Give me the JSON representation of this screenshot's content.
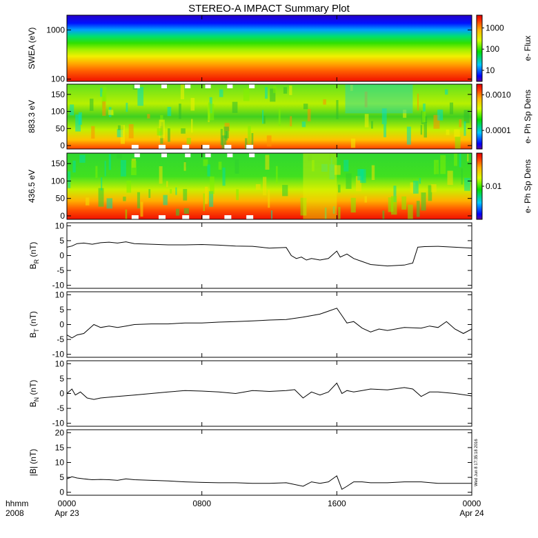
{
  "chart_data": {
    "type": "heatmap",
    "title": "STEREO-A IMPACT Summary Plot",
    "timestamp": "Wed Jun  8 17:35:18 2016",
    "x_axis": {
      "row_label_1": "hhmm",
      "row_label_2": "2008",
      "ticks": [
        {
          "hour": 0,
          "time": "0000",
          "date": "Apr 23"
        },
        {
          "hour": 8,
          "time": "0800",
          "date": ""
        },
        {
          "hour": 16,
          "time": "1600",
          "date": ""
        },
        {
          "hour": 24,
          "time": "0000",
          "date": "Apr 24"
        }
      ],
      "range_hours": [
        0,
        24
      ]
    },
    "spectrograms": [
      {
        "name": "swea",
        "ylabel": "SWEA (eV)",
        "yscale": "log",
        "ylim": [
          90,
          2000
        ],
        "yticks": [
          {
            "v": 1000,
            "label": "1000"
          },
          {
            "v": 100,
            "label": "100"
          }
        ],
        "colorbar_label": "e- Flux",
        "colorbar_scale": "log",
        "colorbar_ticks": [
          {
            "v": 1000,
            "label": "1000"
          },
          {
            "v": 100,
            "label": "100"
          },
          {
            "v": 10,
            "label": "10"
          }
        ],
        "colorbar_range": [
          3,
          4000
        ]
      },
      {
        "name": "pad-883",
        "ylabel": "883.3 eV",
        "yscale": "linear",
        "ylim": [
          -10,
          180
        ],
        "yticks": [
          {
            "v": 0,
            "label": "0"
          },
          {
            "v": 50,
            "label": "50"
          },
          {
            "v": 100,
            "label": "100"
          },
          {
            "v": 150,
            "label": "150"
          }
        ],
        "colorbar_label": "e- Ph Sp Dens",
        "colorbar_scale": "log",
        "colorbar_ticks": [
          {
            "v": 0.001,
            "label": "0.0010"
          },
          {
            "v": 0.0001,
            "label": "0.0001"
          }
        ],
        "colorbar_range": [
          3e-05,
          0.002
        ]
      },
      {
        "name": "pad-436",
        "ylabel": "436.5 eV",
        "yscale": "linear",
        "ylim": [
          -10,
          180
        ],
        "yticks": [
          {
            "v": 0,
            "label": "0"
          },
          {
            "v": 50,
            "label": "50"
          },
          {
            "v": 100,
            "label": "100"
          },
          {
            "v": 150,
            "label": "150"
          }
        ],
        "colorbar_label": "e- Ph Sp Dens",
        "colorbar_scale": "log",
        "colorbar_ticks": [
          {
            "v": 0.01,
            "label": "0.01"
          }
        ],
        "colorbar_range": [
          0.002,
          0.05
        ]
      }
    ],
    "line_panels": [
      {
        "name": "br",
        "label_main": "B",
        "label_sub": "R",
        "label_unit": "(nT)",
        "ylim": [
          -11,
          11
        ],
        "yticks": [
          {
            "v": 10,
            "label": "10"
          },
          {
            "v": 5,
            "label": "5"
          },
          {
            "v": 0,
            "label": "0"
          },
          {
            "v": -5,
            "label": "-5"
          },
          {
            "v": -10,
            "label": "-10"
          }
        ],
        "series": [
          {
            "x": [
              0,
              0.3,
              0.6,
              1,
              1.5,
              2,
              2.5,
              3,
              3.5,
              4,
              5,
              6,
              7,
              8,
              9,
              10,
              11,
              12,
              12.5,
              13,
              13.3,
              13.6,
              13.9,
              14.2,
              14.5,
              15,
              15.5,
              16,
              16.2,
              16.6,
              17,
              17.5,
              18,
              19,
              20,
              20.5,
              20.8,
              21.2,
              22,
              23,
              24
            ],
            "y": [
              2.8,
              3.2,
              4,
              4.2,
              3.8,
              4.3,
              4.5,
              4.2,
              4.6,
              4,
              3.8,
              3.6,
              3.6,
              3.7,
              3.5,
              3.2,
              3.1,
              2.5,
              2.6,
              2.7,
              0,
              -1,
              -0.5,
              -1.5,
              -1,
              -1.5,
              -1,
              1.5,
              -0.5,
              0.5,
              -1,
              -2,
              -3,
              -3.5,
              -3.2,
              -2.5,
              2.8,
              3,
              3.1,
              2.8,
              2.5
            ]
          }
        ]
      },
      {
        "name": "bt",
        "label_main": "B",
        "label_sub": "T",
        "label_unit": "(nT)",
        "ylim": [
          -11,
          11
        ],
        "yticks": [
          {
            "v": 10,
            "label": "10"
          },
          {
            "v": 5,
            "label": "5"
          },
          {
            "v": 0,
            "label": "0"
          },
          {
            "v": -5,
            "label": "-5"
          },
          {
            "v": -10,
            "label": "-10"
          }
        ],
        "series": [
          {
            "x": [
              0,
              0.3,
              0.6,
              1,
              1.3,
              1.6,
              2,
              2.5,
              3,
              3.5,
              4,
              5,
              6,
              7,
              8,
              9,
              10,
              11,
              12,
              13,
              14,
              15,
              15.5,
              16,
              16.3,
              16.6,
              17,
              17.5,
              18,
              18.5,
              19,
              20,
              21,
              21.5,
              22,
              22.5,
              23,
              23.5,
              24
            ],
            "y": [
              -3.5,
              -4.5,
              -3.5,
              -3,
              -1.5,
              0,
              -1,
              -0.5,
              -1,
              -0.5,
              0,
              0.2,
              0.2,
              0.5,
              0.5,
              0.8,
              1,
              1.2,
              1.5,
              1.7,
              2.5,
              3.5,
              4.5,
              5.5,
              3,
              0.5,
              1,
              -1.2,
              -2.5,
              -1.5,
              -2,
              -1,
              -1.2,
              -0.5,
              -1,
              1,
              -1.5,
              -3,
              -1.5
            ]
          }
        ]
      },
      {
        "name": "bn",
        "label_main": "B",
        "label_sub": "N",
        "label_unit": "(nT)",
        "ylim": [
          -11,
          11
        ],
        "yticks": [
          {
            "v": 10,
            "label": "10"
          },
          {
            "v": 5,
            "label": "5"
          },
          {
            "v": 0,
            "label": "0"
          },
          {
            "v": -5,
            "label": "-5"
          },
          {
            "v": -10,
            "label": "-10"
          }
        ],
        "series": [
          {
            "x": [
              0,
              0.3,
              0.5,
              0.8,
              1.2,
              1.6,
              2,
              3,
              4,
              5,
              6,
              7,
              8,
              9,
              10,
              11,
              12,
              13,
              13.5,
              14,
              14.5,
              15,
              15.5,
              16,
              16.3,
              16.6,
              17,
              17.5,
              18,
              19,
              20,
              20.5,
              21,
              21.5,
              22,
              23,
              24
            ],
            "y": [
              0,
              1.5,
              -0.5,
              0.5,
              -1.5,
              -2,
              -1.5,
              -1,
              -0.5,
              0,
              0.5,
              1,
              0.8,
              0.5,
              0,
              1,
              0.7,
              1,
              1.3,
              -1.5,
              0.5,
              -0.5,
              0.5,
              3.5,
              0,
              1,
              0.5,
              1,
              1.5,
              1.2,
              2,
              1.5,
              -1,
              0.5,
              0.5,
              0,
              -0.8
            ]
          }
        ]
      },
      {
        "name": "bmag",
        "label_main": "|B|",
        "label_sub": "",
        "label_unit": "(nT)",
        "ylim": [
          -1,
          21
        ],
        "yticks": [
          {
            "v": 20,
            "label": "20"
          },
          {
            "v": 15,
            "label": "15"
          },
          {
            "v": 10,
            "label": "10"
          },
          {
            "v": 5,
            "label": "5"
          },
          {
            "v": 0,
            "label": "0"
          }
        ],
        "series": [
          {
            "x": [
              0,
              0.3,
              0.6,
              1,
              1.5,
              2,
              2.5,
              3,
              3.5,
              4,
              5,
              6,
              7,
              8,
              9,
              10,
              11,
              12,
              13,
              14,
              14.5,
              15,
              15.5,
              16,
              16.3,
              16.6,
              17,
              17.5,
              18,
              19,
              20,
              21,
              22,
              23,
              24
            ],
            "y": [
              4.5,
              5.2,
              4.8,
              4.5,
              4.2,
              4.3,
              4.2,
              4,
              4.5,
              4.2,
              4,
              3.8,
              3.5,
              3.3,
              3.2,
              3.2,
              3,
              3,
              3.2,
              2,
              3.5,
              3,
              3.5,
              5.5,
              1,
              2,
              3.5,
              3.5,
              3.2,
              3.2,
              3.5,
              3.5,
              3,
              3,
              3
            ]
          }
        ]
      }
    ]
  }
}
